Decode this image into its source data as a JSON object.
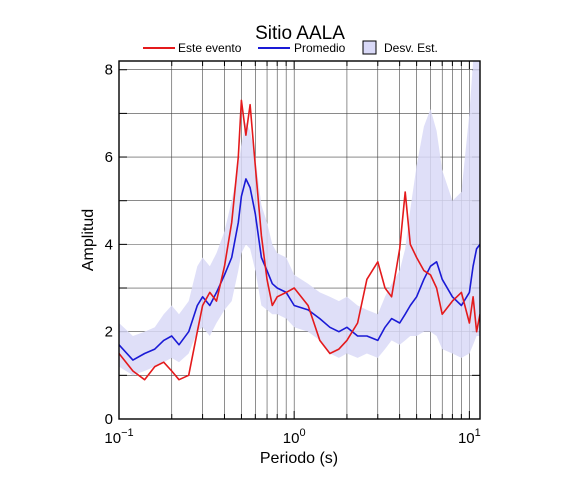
{
  "chart_data": {
    "type": "line",
    "title": "Sitio AALA",
    "xlabel": "Periodo (s)",
    "ylabel": "Amplitud",
    "xscale": "log",
    "xlim": [
      0.1,
      11.5
    ],
    "ylim": [
      0,
      8.2
    ],
    "x_ticks": [
      {
        "base": "10",
        "exp": "−1",
        "value": 0.1
      },
      {
        "base": "10",
        "exp": "0",
        "value": 1
      },
      {
        "base": "10",
        "exp": "1",
        "value": 10
      }
    ],
    "y_ticks": [
      {
        "label": "0",
        "value": 0
      },
      {
        "label": "2",
        "value": 2
      },
      {
        "label": "4",
        "value": 4
      },
      {
        "label": "6",
        "value": 6
      },
      {
        "label": "8",
        "value": 8
      }
    ],
    "grid": true,
    "legend": "top",
    "legend_entries": [
      {
        "label": "Este evento",
        "color": "#e41a1c",
        "kind": "line"
      },
      {
        "label": "Promedio",
        "color": "#1a1ad6",
        "kind": "line"
      },
      {
        "label": "Desv. Est.",
        "color": "#d9d9f7",
        "kind": "box"
      }
    ],
    "x": [
      0.1,
      0.12,
      0.14,
      0.16,
      0.18,
      0.2,
      0.22,
      0.25,
      0.28,
      0.3,
      0.33,
      0.36,
      0.4,
      0.44,
      0.48,
      0.5,
      0.53,
      0.56,
      0.6,
      0.65,
      0.7,
      0.75,
      0.8,
      0.9,
      1.0,
      1.2,
      1.4,
      1.6,
      1.8,
      2.0,
      2.3,
      2.6,
      3.0,
      3.3,
      3.6,
      4.0,
      4.3,
      4.6,
      5.0,
      5.5,
      6.0,
      6.5,
      7.0,
      8.0,
      9.0,
      10.0,
      10.5,
      11.0,
      11.5
    ],
    "series": [
      {
        "name": "Este evento",
        "color": "#e41a1c",
        "values": [
          1.5,
          1.1,
          0.9,
          1.2,
          1.3,
          1.1,
          0.9,
          1.0,
          2.0,
          2.6,
          2.9,
          2.7,
          3.5,
          4.5,
          6.0,
          7.3,
          6.5,
          7.2,
          5.8,
          4.2,
          3.2,
          2.6,
          2.8,
          2.9,
          3.0,
          2.6,
          1.8,
          1.5,
          1.6,
          1.8,
          2.2,
          3.2,
          3.6,
          3.0,
          2.8,
          3.9,
          5.2,
          4.0,
          3.7,
          3.4,
          3.3,
          3.0,
          2.4,
          2.7,
          2.9,
          2.2,
          2.8,
          2.0,
          2.4
        ]
      },
      {
        "name": "Promedio",
        "color": "#1a1ad6",
        "values": [
          1.7,
          1.35,
          1.5,
          1.6,
          1.8,
          1.9,
          1.7,
          2.0,
          2.6,
          2.8,
          2.6,
          2.9,
          3.3,
          3.7,
          4.5,
          5.1,
          5.5,
          5.3,
          4.7,
          3.7,
          3.4,
          3.1,
          3.0,
          2.9,
          2.6,
          2.5,
          2.3,
          2.1,
          2.0,
          2.1,
          1.9,
          1.9,
          1.8,
          2.1,
          2.3,
          2.2,
          2.4,
          2.6,
          2.8,
          3.2,
          3.5,
          3.6,
          3.2,
          2.8,
          2.6,
          2.9,
          3.5,
          3.9,
          4.0
        ]
      },
      {
        "name": "Desv. Est.",
        "kind": "band",
        "lower": [
          1.2,
          1.0,
          1.1,
          1.2,
          1.3,
          1.4,
          1.3,
          1.5,
          2.0,
          2.1,
          1.9,
          2.2,
          2.5,
          2.7,
          3.4,
          3.8,
          4.0,
          3.9,
          3.4,
          2.6,
          2.5,
          2.4,
          2.4,
          2.3,
          2.1,
          2.0,
          1.8,
          1.5,
          1.4,
          1.5,
          1.4,
          1.5,
          1.4,
          1.6,
          1.8,
          1.7,
          1.8,
          1.9,
          1.9,
          2.0,
          2.0,
          1.9,
          1.6,
          1.5,
          1.4,
          1.5,
          1.7,
          1.9,
          1.9
        ],
        "upper": [
          2.2,
          1.9,
          2.0,
          2.1,
          2.4,
          2.6,
          2.4,
          2.7,
          3.5,
          3.7,
          3.5,
          3.8,
          4.3,
          5.0,
          5.8,
          6.3,
          6.8,
          6.6,
          6.0,
          4.9,
          4.5,
          4.0,
          3.8,
          3.7,
          3.3,
          3.1,
          2.9,
          2.8,
          2.7,
          2.8,
          2.6,
          2.5,
          2.4,
          2.8,
          3.1,
          3.4,
          3.9,
          4.8,
          5.8,
          6.7,
          7.1,
          6.6,
          5.7,
          5.0,
          5.2,
          7.0,
          8.2,
          8.2,
          8.2
        ]
      }
    ]
  }
}
